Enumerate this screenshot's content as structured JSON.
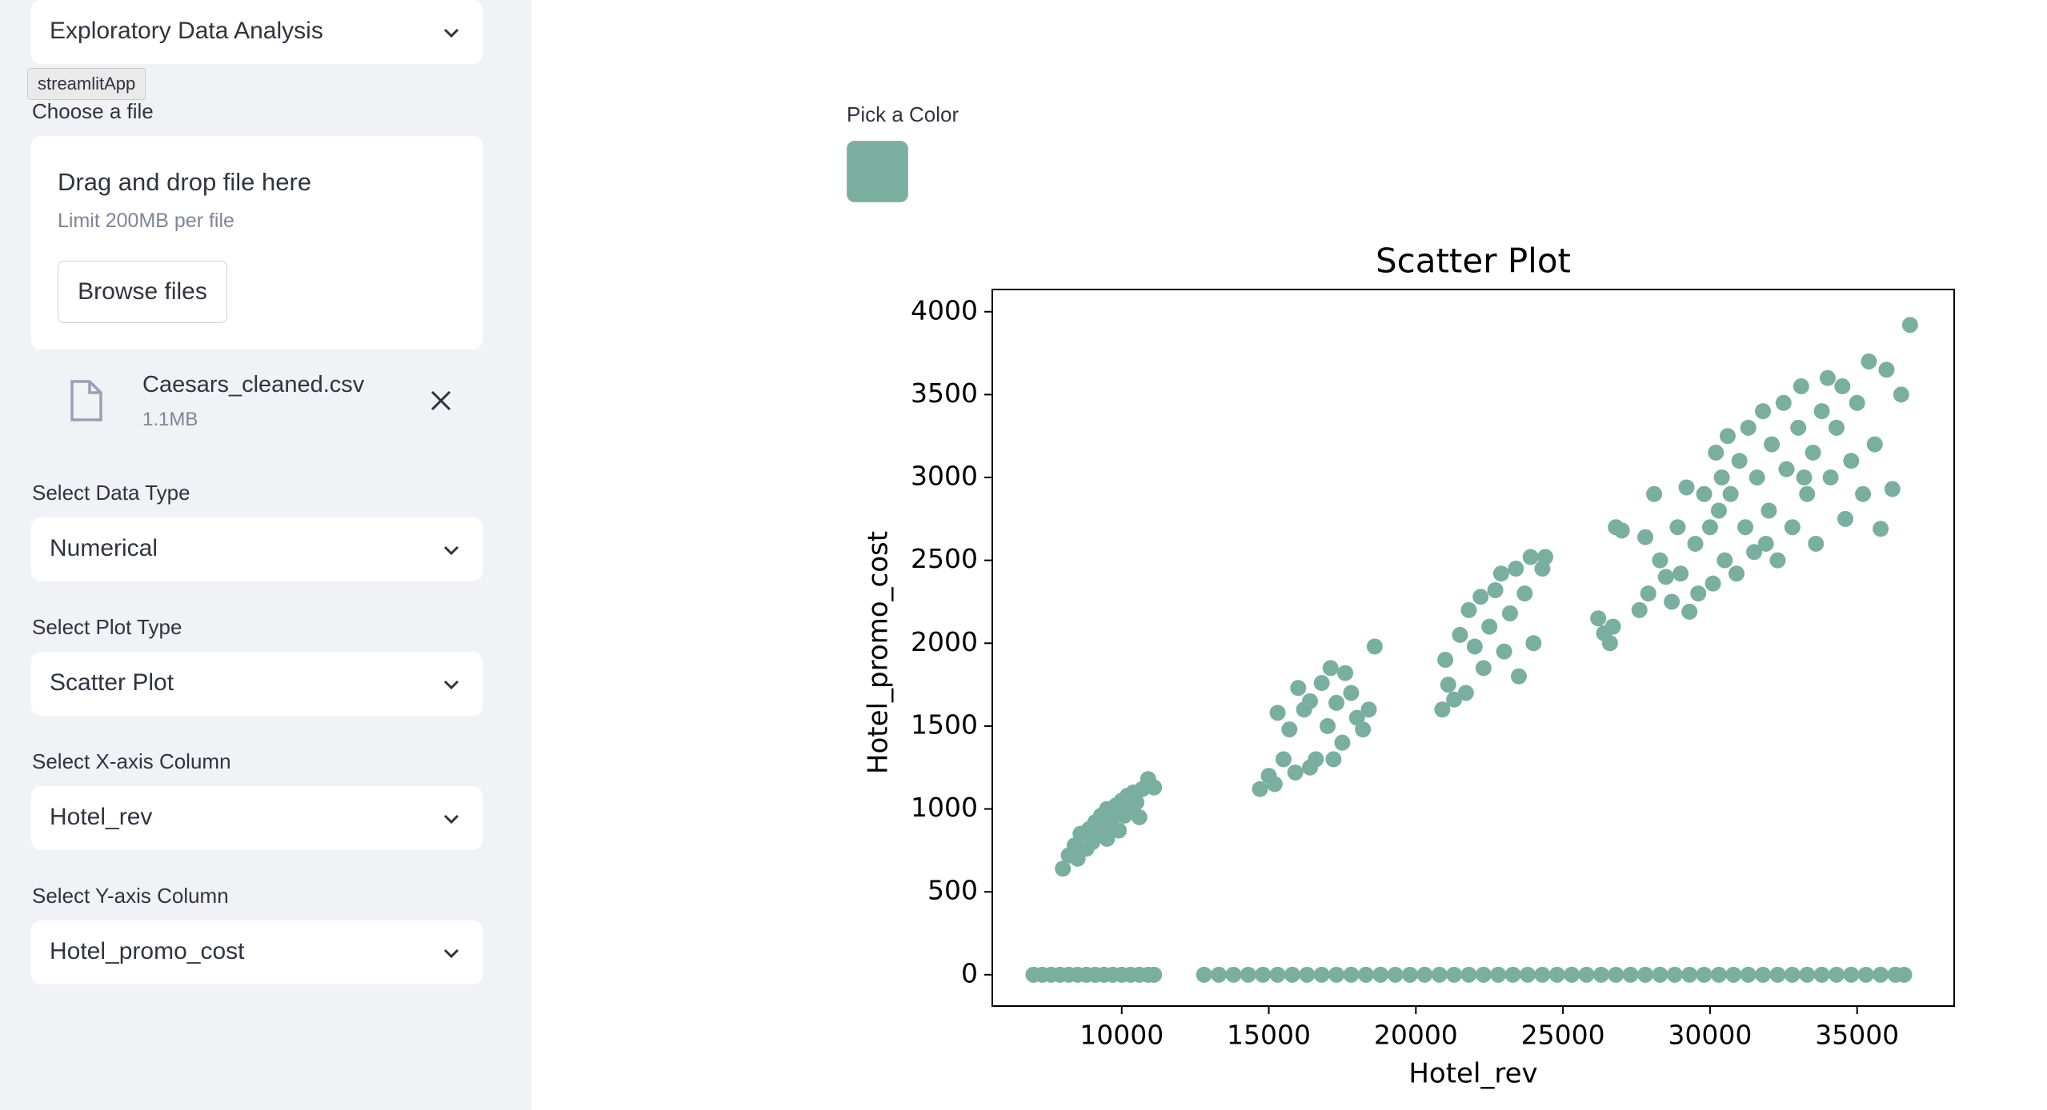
{
  "sidebar": {
    "app_select": "Exploratory Data Analysis",
    "tooltip": "streamlitApp",
    "file_uploader": {
      "label": "Choose a file",
      "drag_text": "Drag and drop file here",
      "limit_text": "Limit 200MB per file",
      "button": "Browse files"
    },
    "file": {
      "name": "Caesars_cleaned.csv",
      "size": "1.1MB"
    },
    "selects": [
      {
        "label": "Select Data Type",
        "value": "Numerical"
      },
      {
        "label": "Select Plot Type",
        "value": "Scatter Plot"
      },
      {
        "label": "Select X-axis Column",
        "value": "Hotel_rev"
      },
      {
        "label": "Select Y-axis Column",
        "value": "Hotel_promo_cost"
      }
    ]
  },
  "main": {
    "color_picker": {
      "label": "Pick a Color",
      "color": "#7aaf9f"
    }
  },
  "chart_data": {
    "type": "scatter",
    "title": "Scatter Plot",
    "x_label": "Hotel_rev",
    "y_label": "Hotel_promo_cost",
    "color": "#7aaf9f",
    "xlim": [
      5600,
      38300
    ],
    "ylim": [
      -189,
      4134
    ],
    "xticks": [
      10000,
      15000,
      20000,
      25000,
      30000,
      35000
    ],
    "yticks": [
      0,
      500,
      1000,
      1500,
      2000,
      2500,
      3000,
      3500,
      4000
    ],
    "x": [
      8000,
      8200,
      8400,
      8500,
      8600,
      8800,
      8900,
      9000,
      9100,
      9200,
      9300,
      9400,
      9500,
      9600,
      9700,
      9800,
      9900,
      10000,
      10100,
      10200,
      10300,
      10400,
      10500,
      10700,
      10900,
      11100,
      10600,
      9500,
      14700,
      15000,
      15200,
      15300,
      15500,
      15700,
      15900,
      16000,
      16200,
      16400,
      16600,
      16800,
      17000,
      17100,
      17300,
      17500,
      17600,
      17800,
      18000,
      18200,
      18400,
      18600,
      16400,
      17200,
      20900,
      21000,
      21100,
      21300,
      21500,
      21700,
      21800,
      22000,
      22200,
      22300,
      22500,
      22700,
      22900,
      23000,
      23200,
      23400,
      23500,
      23700,
      23900,
      24000,
      24300,
      24400,
      26200,
      26400,
      26600,
      26700,
      26800,
      27000,
      27600,
      27800,
      27900,
      28100,
      28300,
      28500,
      28700,
      28900,
      29000,
      29200,
      29300,
      29500,
      29600,
      29800,
      30000,
      30100,
      30200,
      30300,
      30500,
      30600,
      30700,
      30900,
      31000,
      31200,
      31300,
      31500,
      31600,
      31800,
      32000,
      32100,
      32300,
      32500,
      32600,
      32800,
      33000,
      33100,
      33300,
      33500,
      33600,
      33800,
      34000,
      34100,
      34300,
      34500,
      34600,
      34800,
      35000,
      35200,
      35400,
      35600,
      35800,
      36000,
      36200,
      36500,
      36800,
      33200,
      31900,
      30400,
      7000,
      7300,
      7600,
      7900,
      8200,
      8500,
      8800,
      9100,
      9400,
      9700,
      10000,
      10300,
      10600,
      10900,
      11100,
      12800,
      13300,
      13800,
      14300,
      14800,
      15300,
      15800,
      16300,
      16800,
      17300,
      17800,
      18300,
      18800,
      19300,
      19800,
      20300,
      20800,
      21300,
      21800,
      22300,
      22800,
      23300,
      23800,
      24300,
      24800,
      25300,
      25800,
      26300,
      26800,
      27300,
      27800,
      28300,
      28800,
      29300,
      29800,
      30300,
      30800,
      31300,
      31800,
      32300,
      32800,
      33300,
      33800,
      34300,
      34800,
      35300,
      35800,
      36300,
      36600
    ],
    "values": [
      640,
      720,
      780,
      700,
      850,
      760,
      880,
      800,
      920,
      850,
      960,
      880,
      1000,
      900,
      950,
      1020,
      870,
      1050,
      960,
      1080,
      1000,
      1100,
      1040,
      1120,
      1180,
      1130,
      950,
      820,
      1120,
      1200,
      1150,
      1580,
      1300,
      1480,
      1220,
      1730,
      1600,
      1650,
      1300,
      1760,
      1500,
      1850,
      1640,
      1400,
      1820,
      1700,
      1550,
      1480,
      1600,
      1980,
      1250,
      1300,
      1600,
      1900,
      1750,
      1660,
      2050,
      1700,
      2200,
      1980,
      2280,
      1850,
      2100,
      2320,
      2420,
      1950,
      2180,
      2450,
      1800,
      2300,
      2520,
      2000,
      2450,
      2520,
      2150,
      2060,
      2000,
      2100,
      2700,
      2680,
      2200,
      2640,
      2300,
      2900,
      2500,
      2400,
      2250,
      2700,
      2420,
      2940,
      2190,
      2600,
      2300,
      2900,
      2700,
      2360,
      3150,
      2800,
      2500,
      3250,
      2900,
      2420,
      3100,
      2700,
      3300,
      2550,
      3000,
      3400,
      2800,
      3200,
      2500,
      3450,
      3050,
      2700,
      3300,
      3550,
      2900,
      3150,
      2600,
      3400,
      3600,
      3000,
      3300,
      3550,
      2750,
      3100,
      3450,
      2900,
      3700,
      3200,
      2690,
      3650,
      2930,
      3500,
      3920,
      3000,
      2600,
      3000,
      0,
      0,
      0,
      0,
      0,
      0,
      0,
      0,
      0,
      0,
      0,
      0,
      0,
      0,
      0,
      0,
      0,
      0,
      0,
      0,
      0,
      0,
      0,
      0,
      0,
      0,
      0,
      0,
      0,
      0,
      0,
      0,
      0,
      0,
      0,
      0,
      0,
      0,
      0,
      0,
      0,
      0,
      0,
      0,
      0,
      0,
      0,
      0,
      0,
      0,
      0,
      0,
      0,
      0,
      0,
      0,
      0,
      0,
      0,
      0,
      0,
      0,
      0,
      0
    ]
  }
}
